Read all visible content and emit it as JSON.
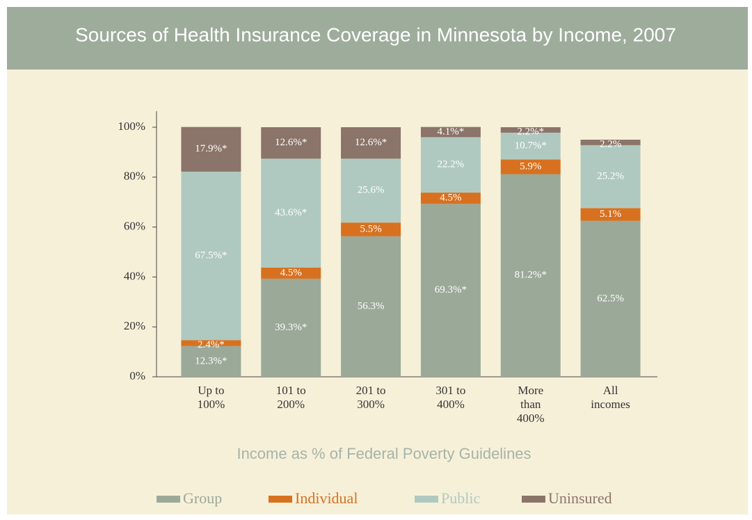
{
  "chart_data": {
    "type": "stacked_bar",
    "title": "Sources of Health Insurance Coverage in Minnesota by Income, 2007",
    "x_label": "Income as % of Federal Poverty Guidelines",
    "categories": [
      [
        "Up to",
        "100%"
      ],
      [
        "101 to",
        "200%"
      ],
      [
        "201 to",
        "300%"
      ],
      [
        "301 to",
        "400%"
      ],
      [
        "More",
        "than",
        "400%"
      ],
      [
        "All",
        "incomes"
      ]
    ],
    "ylim": [
      0,
      100
    ],
    "yticks": [
      {
        "value": 0,
        "label": "0%"
      },
      {
        "value": 20,
        "label": "20%"
      },
      {
        "value": 40,
        "label": "40%"
      },
      {
        "value": 60,
        "label": "60%"
      },
      {
        "value": 80,
        "label": "80%"
      },
      {
        "value": 100,
        "label": "100%"
      }
    ],
    "series": [
      {
        "name": "Group",
        "color": "#9ba999",
        "values": [
          12.3,
          39.3,
          56.3,
          69.3,
          81.2,
          62.5
        ],
        "value_labels": [
          "12.3%*",
          "39.3%*",
          "56.3%",
          "69.3%*",
          "81.2%*",
          "62.5%"
        ]
      },
      {
        "name": "Individual",
        "color": "#d8711f",
        "values": [
          2.4,
          4.5,
          5.5,
          4.5,
          5.9,
          5.1
        ],
        "value_labels": [
          "2.4%*",
          "4.5%",
          "5.5%",
          "4.5%",
          "5.9%",
          "5.1%"
        ]
      },
      {
        "name": "Public",
        "color": "#afc9c0",
        "values": [
          67.5,
          43.6,
          25.6,
          22.2,
          10.7,
          25.2
        ],
        "value_labels": [
          "67.5%*",
          "43.6%*",
          "25.6%",
          "22.2%",
          "10.7%*",
          "25.2%"
        ]
      },
      {
        "name": "Uninsured",
        "color": "#8b7469",
        "values": [
          17.9,
          12.6,
          12.6,
          4.1,
          2.2,
          2.2
        ],
        "value_labels": [
          "17.9%*",
          "12.6%*",
          "12.6%*",
          "4.1%*",
          "2.2%*",
          "2.2%"
        ]
      }
    ]
  }
}
